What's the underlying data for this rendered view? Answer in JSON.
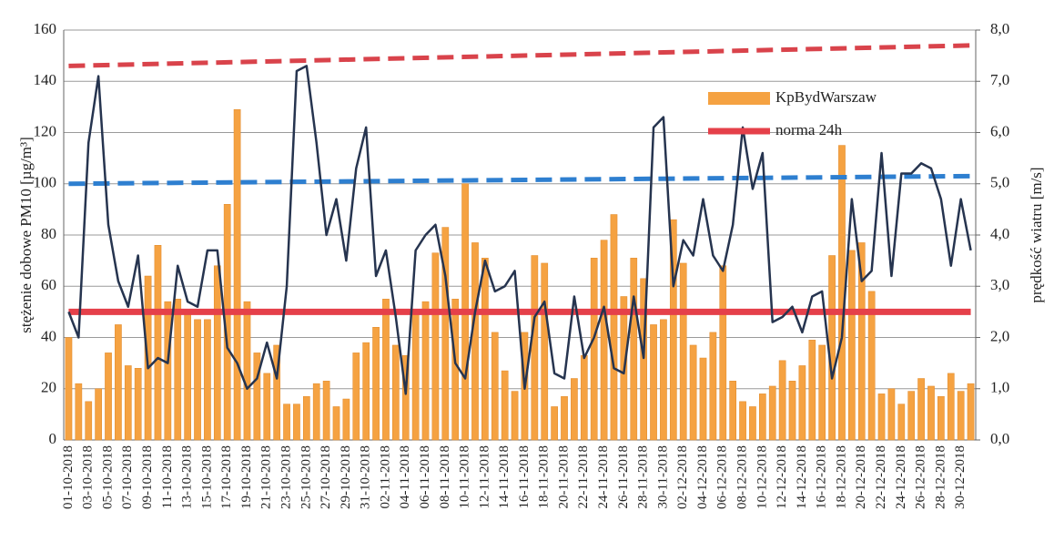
{
  "chart_data": {
    "type": "bar",
    "y_label": "stężenie dobowe PM10 [µg/m³]",
    "y2_label": "prędkość wiatru [m/s]",
    "categories": [
      "01-10-2018",
      null,
      "03-10-2018",
      null,
      "05-10-2018",
      null,
      "07-10-2018",
      null,
      "09-10-2018",
      null,
      "11-10-2018",
      null,
      "13-10-2018",
      null,
      "15-10-2018",
      null,
      "17-10-2018",
      null,
      "19-10-2018",
      null,
      "21-10-2018",
      null,
      "23-10-2018",
      null,
      "25-10-2018",
      null,
      "27-10-2018",
      null,
      "29-10-2018",
      null,
      "31-10-2018",
      null,
      "02-11-2018",
      null,
      "04-11-2018",
      null,
      "06-11-2018",
      null,
      "08-11-2018",
      null,
      "10-11-2018",
      null,
      "12-11-2018",
      null,
      "14-11-2018",
      null,
      "16-11-2018",
      null,
      "18-11-2018",
      null,
      "20-11-2018",
      null,
      "22-11-2018",
      null,
      "24-11-2018",
      null,
      "26-11-2018",
      null,
      "28-11-2018",
      null,
      "30-11-2018",
      null,
      "02-12-2018",
      null,
      "04-12-2018",
      null,
      "06-12-2018",
      null,
      "08-12-2018",
      null,
      "10-12-2018",
      null,
      "12-12-2018",
      null,
      "14-12-2018",
      null,
      "16-12-2018",
      null,
      "18-12-2018",
      null,
      "20-12-2018",
      null,
      "22-12-2018",
      null,
      "24-12-2018",
      null,
      "26-12-2018",
      null,
      "28-12-2018",
      null,
      "30-12-2018",
      null
    ],
    "series": [
      {
        "name": "KpBydWarszaw",
        "color": "#f5a242",
        "kind": "bar",
        "values": [
          40,
          22,
          15,
          20,
          34,
          45,
          29,
          28,
          64,
          76,
          54,
          55,
          51,
          47,
          47,
          68,
          92,
          129,
          54,
          34,
          26,
          37,
          14,
          14,
          17,
          22,
          23,
          13,
          16,
          34,
          38,
          44,
          55,
          37,
          33,
          50,
          54,
          73,
          83,
          55,
          100,
          77,
          71,
          42,
          27,
          19,
          42,
          72,
          69,
          13,
          17,
          24,
          33,
          71,
          78,
          88,
          56,
          71,
          63,
          45,
          47,
          86,
          69,
          37,
          32,
          42,
          68,
          23,
          15,
          13,
          18,
          21,
          31,
          23,
          29,
          39,
          37,
          72,
          115,
          74,
          77,
          58,
          18,
          20,
          14,
          19,
          24,
          21,
          17,
          26,
          19,
          22
        ]
      },
      {
        "name": "norma 24h",
        "color": "#e5404a",
        "kind": "line",
        "width": 7,
        "values": [
          50,
          50,
          50,
          50,
          50,
          50,
          50,
          50,
          50,
          50,
          50,
          50,
          50,
          50,
          50,
          50,
          50,
          50,
          50,
          50,
          50,
          50,
          50,
          50,
          50,
          50,
          50,
          50,
          50,
          50,
          50,
          50,
          50,
          50,
          50,
          50,
          50,
          50,
          50,
          50,
          50,
          50,
          50,
          50,
          50,
          50,
          50,
          50,
          50,
          50,
          50,
          50,
          50,
          50,
          50,
          50,
          50,
          50,
          50,
          50,
          50,
          50,
          50,
          50,
          50,
          50,
          50,
          50,
          50,
          50,
          50,
          50,
          50,
          50,
          50,
          50,
          50,
          50,
          50,
          50,
          50,
          50,
          50,
          50,
          50,
          50,
          50,
          50,
          50,
          50,
          50,
          50
        ]
      },
      {
        "color": "#26344f",
        "kind": "line",
        "width": 2.5,
        "axis": "y2",
        "values": [
          2.5,
          2.0,
          5.8,
          7.1,
          4.2,
          3.1,
          2.6,
          3.6,
          1.4,
          1.6,
          1.5,
          3.4,
          2.7,
          2.6,
          3.7,
          3.7,
          1.8,
          1.5,
          1.0,
          1.2,
          1.9,
          1.2,
          3.0,
          7.2,
          7.3,
          5.8,
          4.0,
          4.7,
          3.5,
          5.3,
          6.1,
          3.2,
          3.7,
          2.4,
          0.9,
          3.7,
          4.0,
          4.2,
          3.2,
          1.5,
          1.2,
          2.5,
          3.5,
          2.9,
          3.0,
          3.3,
          1.0,
          2.4,
          2.7,
          1.3,
          1.2,
          2.8,
          1.6,
          2.0,
          2.6,
          1.4,
          1.3,
          2.8,
          1.6,
          6.1,
          6.3,
          3.0,
          3.9,
          3.6,
          4.7,
          3.6,
          3.3,
          4.2,
          6.1,
          4.9,
          5.6,
          2.3,
          2.4,
          2.6,
          2.1,
          2.8,
          2.9,
          1.2,
          2.0,
          4.7,
          3.1,
          3.3,
          5.6,
          3.2,
          5.2,
          5.2,
          5.4,
          5.3,
          4.7,
          3.4,
          4.7,
          3.7
        ]
      }
    ],
    "trend_lines": [
      {
        "color": "#d9434b",
        "values": [
          146,
          154
        ]
      },
      {
        "color": "#2e7fd0",
        "values": [
          100,
          103
        ]
      }
    ],
    "ylim": [
      0,
      160
    ],
    "yticks": [
      0,
      20,
      40,
      60,
      80,
      100,
      120,
      140,
      160
    ],
    "y2lim": [
      0,
      8
    ],
    "y2ticks": [
      {
        "value": 0,
        "label": "0,0"
      },
      {
        "value": 1,
        "label": "1,0"
      },
      {
        "value": 2,
        "label": "2,0"
      },
      {
        "value": 3,
        "label": "3,0"
      },
      {
        "value": 4,
        "label": "4,0"
      },
      {
        "value": 5,
        "label": "5,0"
      },
      {
        "value": 6,
        "label": "6,0"
      },
      {
        "value": 7,
        "label": "7,0"
      },
      {
        "value": 8,
        "label": "8,0"
      }
    ],
    "grid": true,
    "legend": "upper right"
  }
}
